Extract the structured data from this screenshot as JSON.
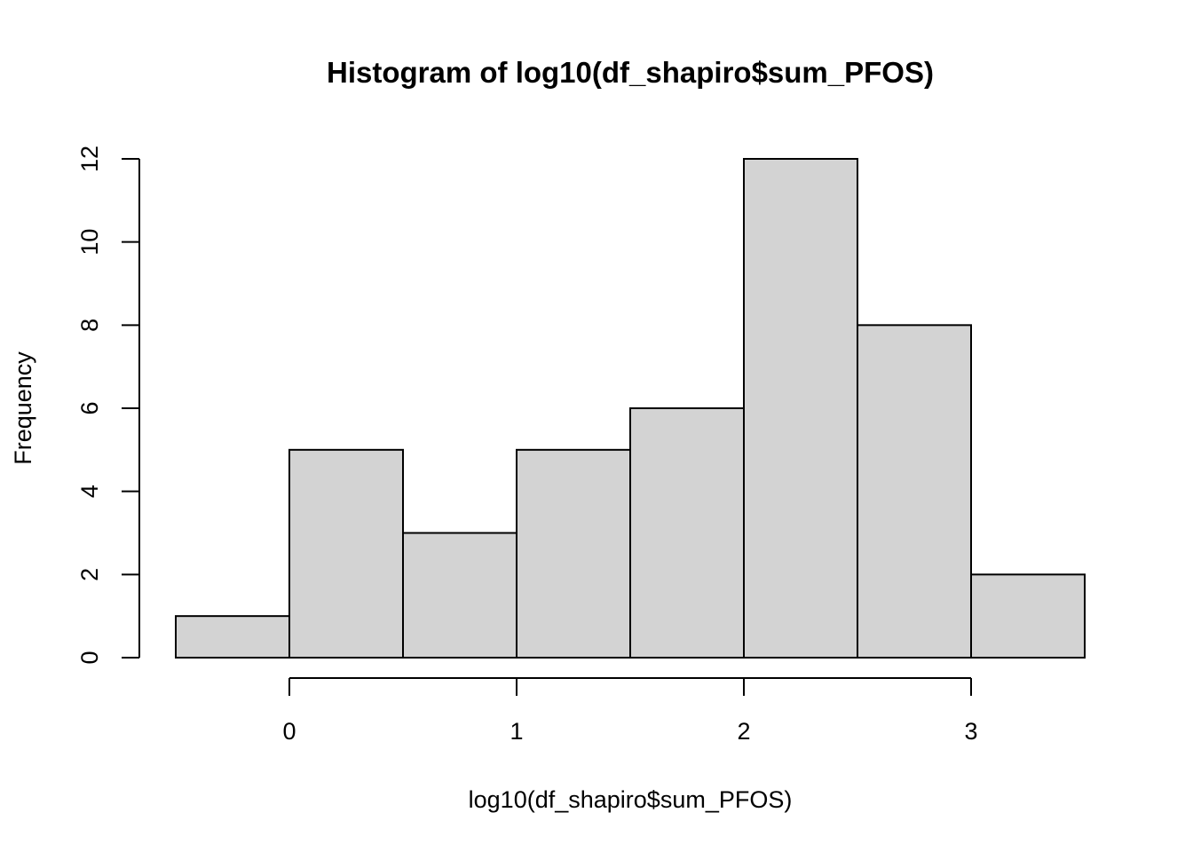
{
  "chart_data": {
    "type": "bar",
    "histogram": true,
    "title": "Histogram of log10(df_shapiro$sum_PFOS)",
    "xlabel": "log10(df_shapiro$sum_PFOS)",
    "ylabel": "Frequency",
    "bins": [
      {
        "x0": -0.5,
        "x1": 0.0,
        "count": 1
      },
      {
        "x0": 0.0,
        "x1": 0.5,
        "count": 5
      },
      {
        "x0": 0.5,
        "x1": 1.0,
        "count": 3
      },
      {
        "x0": 1.0,
        "x1": 1.5,
        "count": 5
      },
      {
        "x0": 1.5,
        "x1": 2.0,
        "count": 6
      },
      {
        "x0": 2.0,
        "x1": 2.5,
        "count": 12
      },
      {
        "x0": 2.5,
        "x1": 3.0,
        "count": 8
      },
      {
        "x0": 3.0,
        "x1": 3.5,
        "count": 2
      }
    ],
    "xlim": [
      -0.5,
      3.5
    ],
    "ylim": [
      0,
      12
    ],
    "x_ticks": [
      0,
      1,
      2,
      3
    ],
    "x_tick_labels": [
      "0",
      "1",
      "2",
      "3"
    ],
    "y_ticks": [
      0,
      2,
      4,
      6,
      8,
      10,
      12
    ],
    "y_tick_labels": [
      "0",
      "2",
      "4",
      "6",
      "8",
      "10",
      "12"
    ],
    "grid": false,
    "bar_color": "#d3d3d3",
    "edge_color": "#000000"
  }
}
